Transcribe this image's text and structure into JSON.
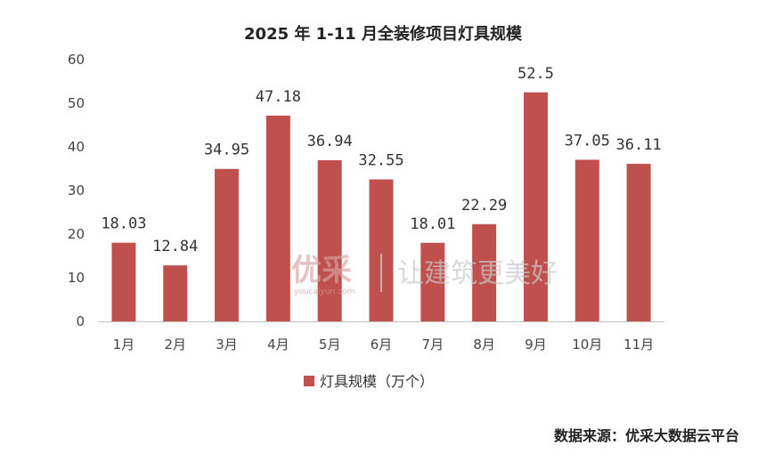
{
  "chart_data": {
    "type": "bar",
    "title": "2025 年 1-11 月全装修项目灯具规模",
    "categories": [
      "1月",
      "2月",
      "3月",
      "4月",
      "5月",
      "6月",
      "7月",
      "8月",
      "9月",
      "10月",
      "11月"
    ],
    "series": [
      {
        "name": "灯具规模（万个）",
        "values": [
          18.03,
          12.84,
          34.95,
          47.18,
          36.94,
          32.55,
          18.01,
          22.29,
          52.5,
          37.05,
          36.11
        ],
        "labels": [
          "18.03",
          "12.84",
          "34.95",
          "47.18",
          "36.94",
          "32.55",
          "18.01",
          "22.29",
          "52.5",
          "37.05",
          "36.11"
        ],
        "color": "#c0504d"
      }
    ],
    "ylim": [
      0,
      60
    ],
    "yticks": [
      "0",
      "10",
      "20",
      "30",
      "40",
      "50",
      "60"
    ],
    "grid": false,
    "legend_position": "bottom"
  },
  "watermark": {
    "logo": "优采",
    "sub": "youcaiyun.com",
    "slogan": "让建筑更美好"
  },
  "source": "数据来源：优采大数据云平台"
}
